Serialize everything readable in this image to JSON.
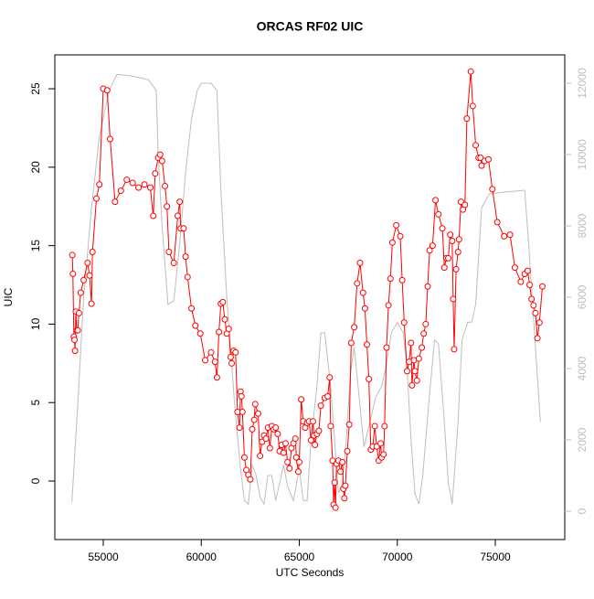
{
  "chart_data": {
    "type": "line",
    "title": "ORCAS RF02 UIC",
    "xlabel": "UTC Seconds",
    "ylabel": "UIC",
    "xlim": [
      52529,
      78543
    ],
    "xticks": [
      55000,
      60000,
      65000,
      70000,
      75000
    ],
    "ylim": [
      -3.73,
      27.16
    ],
    "yticks": [
      0,
      5,
      10,
      15,
      20,
      25
    ],
    "y2lim": [
      -795,
      12795
    ],
    "y2ticks": [
      0,
      2000,
      4000,
      6000,
      8000,
      10000,
      12000
    ],
    "series": [
      {
        "color": "#ff0000",
        "markers": true,
        "x": [
          53420,
          53450,
          53500,
          53530,
          53560,
          53600,
          53650,
          53700,
          53760,
          53850,
          54000,
          54200,
          54300,
          54400,
          54450,
          54650,
          54800,
          55000,
          55200,
          55350,
          55600,
          55900,
          56200,
          56500,
          56800,
          57100,
          57400,
          57550,
          57650,
          57800,
          57900,
          58000,
          58150,
          58250,
          58350,
          58600,
          58800,
          58900,
          58950,
          59100,
          59200,
          59300,
          59500,
          59700,
          59950,
          60200,
          60500,
          60700,
          60800,
          60900,
          61000,
          61100,
          61200,
          61300,
          61400,
          61500,
          61550,
          61650,
          61750,
          61850,
          61950,
          62000,
          62050,
          62100,
          62200,
          62300,
          62400,
          62500,
          62600,
          62700,
          62750,
          62900,
          63000,
          63100,
          63200,
          63300,
          63400,
          63500,
          63600,
          63700,
          63800,
          63900,
          64000,
          64100,
          64200,
          64300,
          64400,
          64500,
          64600,
          64700,
          64800,
          64850,
          64950,
          65000,
          65100,
          65200,
          65300,
          65400,
          65500,
          65600,
          65700,
          65750,
          65800,
          65900,
          66000,
          66100,
          66300,
          66450,
          66550,
          66600,
          66700,
          66750,
          66800,
          66850,
          66900,
          67000,
          67100,
          67200,
          67250,
          67300,
          67350,
          67450,
          67550,
          67650,
          67800,
          67950,
          68100,
          68250,
          68350,
          68450,
          68550,
          68650,
          68750,
          68850,
          68950,
          69050,
          69150,
          69200,
          69300,
          69350,
          69450,
          69550,
          69650,
          69750,
          69950,
          70150,
          70250,
          70350,
          70500,
          70600,
          70700,
          70750,
          70850,
          70900,
          71000,
          71100,
          71250,
          71350,
          71450,
          71550,
          71650,
          71800,
          71950,
          72100,
          72300,
          72400,
          72500,
          72600,
          72700,
          72800,
          72850,
          72900,
          73000,
          73100,
          73150,
          73250,
          73350,
          73450,
          73550,
          73750,
          73850,
          74000,
          74150,
          74250,
          74300,
          74450,
          74650,
          74850,
          75100,
          75450,
          75750,
          76000,
          76300,
          76500,
          76650,
          76750,
          76850,
          76950,
          77050,
          77150,
          77250,
          77400
        ],
        "values": [
          14.4,
          13.2,
          9.2,
          9.0,
          8.3,
          10.8,
          9.6,
          9.6,
          10.7,
          12.0,
          12.8,
          13.9,
          13.1,
          11.3,
          14.6,
          18.0,
          18.9,
          25.0,
          24.9,
          21.8,
          17.8,
          18.5,
          19.2,
          19.0,
          18.7,
          18.9,
          18.7,
          16.9,
          19.6,
          20.6,
          20.8,
          20.4,
          18.8,
          17.5,
          14.6,
          13.9,
          16.9,
          17.8,
          16.1,
          16.1,
          14.3,
          13.0,
          11.0,
          9.9,
          9.4,
          7.7,
          8.2,
          7.6,
          6.6,
          9.5,
          11.3,
          11.4,
          10.3,
          9.4,
          9.7,
          7.9,
          7.5,
          8.3,
          8.2,
          4.4,
          3.4,
          5.7,
          5.4,
          4.4,
          1.5,
          0.7,
          0.4,
          0.1,
          3.3,
          3.9,
          4.9,
          4.3,
          1.6,
          2.5,
          2.9,
          2.7,
          3.4,
          2.1,
          3.5,
          3.3,
          3.4,
          3.0,
          1.9,
          2.3,
          1.8,
          2.4,
          1.2,
          0.8,
          2.1,
          2.4,
          2.7,
          1.5,
          0.6,
          1.2,
          5.2,
          3.8,
          3.4,
          3.7,
          3.8,
          2.6,
          3.8,
          2.9,
          2.3,
          3.0,
          3.2,
          4.8,
          5.3,
          5.4,
          6.6,
          3.5,
          1.3,
          -1.5,
          -0.1,
          -1.7,
          1.1,
          1.3,
          0.6,
          1.2,
          -0.5,
          -1.1,
          -0.3,
          1.9,
          3.6,
          8.8,
          9.8,
          12.6,
          13.9,
          12.0,
          11.0,
          8.7,
          6.5,
          2.0,
          2.2,
          3.5,
          2.2,
          1.3,
          2.4,
          1.5,
          1.7,
          3.5,
          8.5,
          11.2,
          12.9,
          15.2,
          16.3,
          15.6,
          12.8,
          10.1,
          7.0,
          7.6,
          8.8,
          6.1,
          7.7,
          7.0,
          6.4,
          7.8,
          8.5,
          9.4,
          10.0,
          12.4,
          14.7,
          15.0,
          17.9,
          17.0,
          16.1,
          13.6,
          14.2,
          14.2,
          15.7,
          15.3,
          11.6,
          8.4,
          13.5,
          14.6,
          15.4,
          17.8,
          17.3,
          17.6,
          23.1,
          26.1,
          23.9,
          21.4,
          20.6,
          20.6,
          20.1,
          20.4,
          20.5,
          18.6,
          16.5,
          15.6,
          15.7,
          13.6,
          12.7,
          13.2,
          13.4,
          12.5,
          11.6,
          11.2,
          10.7,
          9.1,
          10.1,
          12.4
        ]
      },
      {
        "color": "#bebebe",
        "axis": "y2",
        "markers": false,
        "x": [
          53400,
          53700,
          54000,
          54400,
          54800,
          55300,
          55700,
          56500,
          57300,
          57700,
          57800,
          58000,
          58300,
          58600,
          58900,
          59200,
          59500,
          59800,
          60000,
          60500,
          60800,
          61000,
          61300,
          61700,
          62000,
          62200,
          62400,
          62600,
          62800,
          63000,
          63200,
          63400,
          63600,
          63800,
          64000,
          64200,
          64400,
          64700,
          65000,
          65200,
          65400,
          65600,
          65900,
          66100,
          66300,
          66600,
          66800,
          67000,
          67200,
          67400,
          67600,
          67800,
          68000,
          68300,
          68600,
          68900,
          69200,
          69400,
          69700,
          70000,
          70300,
          70500,
          70700,
          70900,
          71100,
          71300,
          71600,
          71900,
          72100,
          72400,
          72600,
          72800,
          73100,
          73300,
          73600,
          73800,
          74000,
          74300,
          74700,
          75500,
          76500,
          76700,
          77000,
          77300
        ],
        "values": [
          250,
          3000,
          6000,
          8500,
          10500,
          11800,
          12250,
          12200,
          12100,
          11800,
          10000,
          8000,
          5800,
          5900,
          7500,
          9500,
          11000,
          11800,
          12000,
          12000,
          11800,
          9000,
          6000,
          3000,
          1200,
          300,
          200,
          1300,
          1000,
          400,
          200,
          1000,
          1000,
          300,
          800,
          1300,
          700,
          300,
          1200,
          300,
          300,
          2000,
          3500,
          5000,
          5000,
          3500,
          2000,
          500,
          800,
          2000,
          3800,
          4600,
          3500,
          1800,
          2500,
          3200,
          3500,
          4000,
          5000,
          5300,
          5000,
          4000,
          2000,
          500,
          200,
          1000,
          3000,
          4800,
          4700,
          2500,
          800,
          200,
          2500,
          4800,
          5300,
          5300,
          5800,
          8500,
          8900,
          8950,
          9000,
          7500,
          5000,
          2500
        ]
      }
    ]
  }
}
